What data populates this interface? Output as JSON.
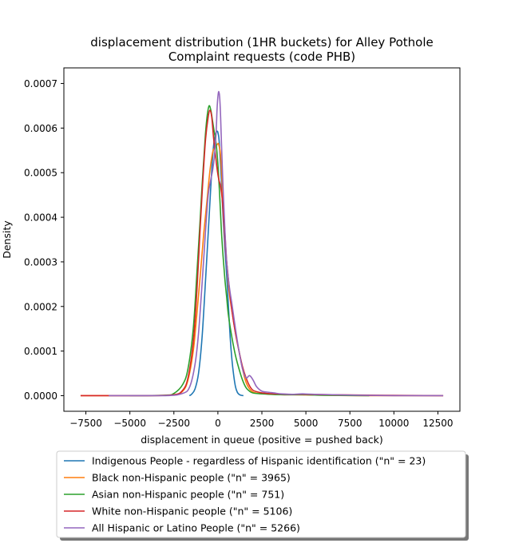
{
  "chart_data": {
    "type": "line",
    "title_line1": "displacement distribution (1HR buckets) for Alley Pothole",
    "title_line2": "Complaint requests (code PHB)",
    "xlabel": "displacement in queue (positive = pushed back)",
    "ylabel": "Density",
    "xlim": [
      -8750,
      13750
    ],
    "ylim": [
      -3.5e-05,
      0.000735
    ],
    "x_ticks": [
      -7500,
      -5000,
      -2500,
      0,
      2500,
      5000,
      7500,
      10000,
      12500
    ],
    "x_tick_labels": [
      "−7500",
      "−5000",
      "−2500",
      "0",
      "2500",
      "5000",
      "7500",
      "10000",
      "12500"
    ],
    "y_ticks": [
      0,
      0.0001,
      0.0002,
      0.0003,
      0.0004,
      0.0005,
      0.0006,
      0.0007
    ],
    "y_tick_labels": [
      "0.0000",
      "0.0001",
      "0.0002",
      "0.0003",
      "0.0004",
      "0.0005",
      "0.0006",
      "0.0007"
    ],
    "legend_position": "below",
    "series": [
      {
        "name": "Indigenous People - regardless of Hispanic identification (\"n\" = 23)",
        "color": "#1f77b4",
        "x": [
          -1620,
          -1500,
          -1300,
          -1100,
          -900,
          -700,
          -500,
          -400,
          -300,
          -200,
          -100,
          -30,
          0,
          50,
          100,
          200,
          300,
          400,
          500,
          600,
          700,
          800,
          900,
          1000,
          1100,
          1200,
          1300,
          1450
        ],
        "y": [
          0,
          3e-06,
          1.5e-05,
          5e-05,
          0.00013,
          0.00026,
          0.0004,
          0.00047,
          0.000535,
          0.000575,
          0.00059,
          0.000593,
          0.00059,
          0.00058,
          0.000555,
          0.00048,
          0.0004,
          0.00033,
          0.00027,
          0.0002,
          0.00013,
          8e-05,
          4.5e-05,
          2e-05,
          8e-06,
          3e-06,
          1e-06,
          0
        ]
      },
      {
        "name": "Black non-Hispanic people (\"n\" = 3965)",
        "color": "#ff7f0e",
        "x": [
          -7800,
          -4000,
          -2500,
          -2000,
          -1700,
          -1400,
          -1200,
          -1000,
          -800,
          -600,
          -450,
          -300,
          -200,
          -100,
          0,
          50,
          150,
          250,
          350,
          500,
          650,
          800,
          1000,
          1200,
          1400,
          1600,
          1800,
          2000,
          2300,
          2700,
          3200,
          3800,
          4800,
          6000,
          8000,
          10000,
          12800
        ],
        "y": [
          0,
          0,
          2e-06,
          1e-05,
          3.5e-05,
          0.0001,
          0.00018,
          0.00027,
          0.000365,
          0.000445,
          0.000505,
          0.000545,
          0.000555,
          0.00056,
          0.000565,
          0.000563,
          0.00054,
          0.00047,
          0.0004,
          0.0003,
          0.00023,
          0.00019,
          0.00014,
          0.0001,
          6e-05,
          3e-05,
          1.5e-05,
          8e-06,
          5e-06,
          4e-06,
          3e-06,
          2e-06,
          2e-06,
          1e-06,
          0,
          0,
          0
        ]
      },
      {
        "name": "Asian non-Hispanic people (\"n\" = 751)",
        "color": "#2ca02c",
        "x": [
          -5000,
          -3000,
          -2500,
          -2000,
          -1700,
          -1400,
          -1200,
          -1000,
          -900,
          -800,
          -700,
          -600,
          -500,
          -400,
          -300,
          -200,
          -100,
          0,
          100,
          200,
          300,
          400,
          500,
          600,
          800,
          1000,
          1200,
          1400,
          1600,
          1800,
          2000,
          2500,
          3000,
          4000,
          5000,
          6000,
          8600
        ],
        "y": [
          0,
          1e-06,
          5e-06,
          2.5e-05,
          6e-05,
          0.00015,
          0.00027,
          0.0004,
          0.00047,
          0.00053,
          0.00059,
          0.00063,
          0.00065,
          0.00064,
          0.000615,
          0.00059,
          0.000565,
          0.00052,
          0.00045,
          0.00037,
          0.00031,
          0.00026,
          0.00022,
          0.00018,
          0.00013,
          9e-05,
          6e-05,
          3.5e-05,
          1.8e-05,
          1e-05,
          6e-06,
          4e-06,
          3e-06,
          2e-06,
          2e-06,
          1e-06,
          0
        ]
      },
      {
        "name": "White non-Hispanic people (\"n\" = 5106)",
        "color": "#d62728",
        "x": [
          -7800,
          -4000,
          -2500,
          -2000,
          -1700,
          -1400,
          -1200,
          -1000,
          -850,
          -700,
          -550,
          -450,
          -350,
          -250,
          -150,
          -50,
          50,
          150,
          250,
          350,
          450,
          550,
          650,
          800,
          1000,
          1200,
          1400,
          1600,
          1800,
          2000,
          2400,
          2800,
          3400,
          4000,
          5000,
          6500,
          9000,
          12800
        ],
        "y": [
          0,
          0,
          2e-06,
          1.2e-05,
          4e-05,
          0.00012,
          0.00023,
          0.00038,
          0.000485,
          0.000575,
          0.000625,
          0.00064,
          0.000625,
          0.00058,
          0.000545,
          0.00051,
          0.000485,
          0.00047,
          0.00044,
          0.00038,
          0.00032,
          0.00028,
          0.00024,
          0.00019,
          0.00014,
          0.0001,
          6.5e-05,
          4e-05,
          2.2e-05,
          1.2e-05,
          7e-06,
          5e-06,
          4e-06,
          3e-06,
          3e-06,
          2e-06,
          1e-06,
          0
        ]
      },
      {
        "name": "All Hispanic or Latino People (\"n\" = 5266)",
        "color": "#9467bd",
        "x": [
          -6200,
          -3000,
          -2000,
          -1600,
          -1300,
          -1100,
          -900,
          -700,
          -550,
          -400,
          -300,
          -200,
          -100,
          -50,
          0,
          50,
          100,
          150,
          200,
          300,
          400,
          500,
          600,
          700,
          800,
          1000,
          1200,
          1400,
          1600,
          1800,
          2000,
          2200,
          2500,
          2800,
          3200,
          3600,
          4200,
          4800,
          5500,
          6500,
          8000,
          10000,
          12800
        ],
        "y": [
          0,
          0,
          5e-06,
          2e-05,
          7e-05,
          0.00014,
          0.00025,
          0.00037,
          0.00045,
          0.000485,
          0.000505,
          0.000535,
          0.00059,
          0.00064,
          0.00067,
          0.000682,
          0.00067,
          0.00063,
          0.00057,
          0.00046,
          0.00037,
          0.0003,
          0.00026,
          0.00023,
          0.000205,
          0.00015,
          0.0001,
          6e-05,
          4e-05,
          4.5e-05,
          3.5e-05,
          2e-05,
          1e-05,
          8e-06,
          6e-06,
          4e-06,
          3e-06,
          4e-06,
          3e-06,
          2e-06,
          1e-06,
          0,
          0
        ]
      }
    ]
  }
}
